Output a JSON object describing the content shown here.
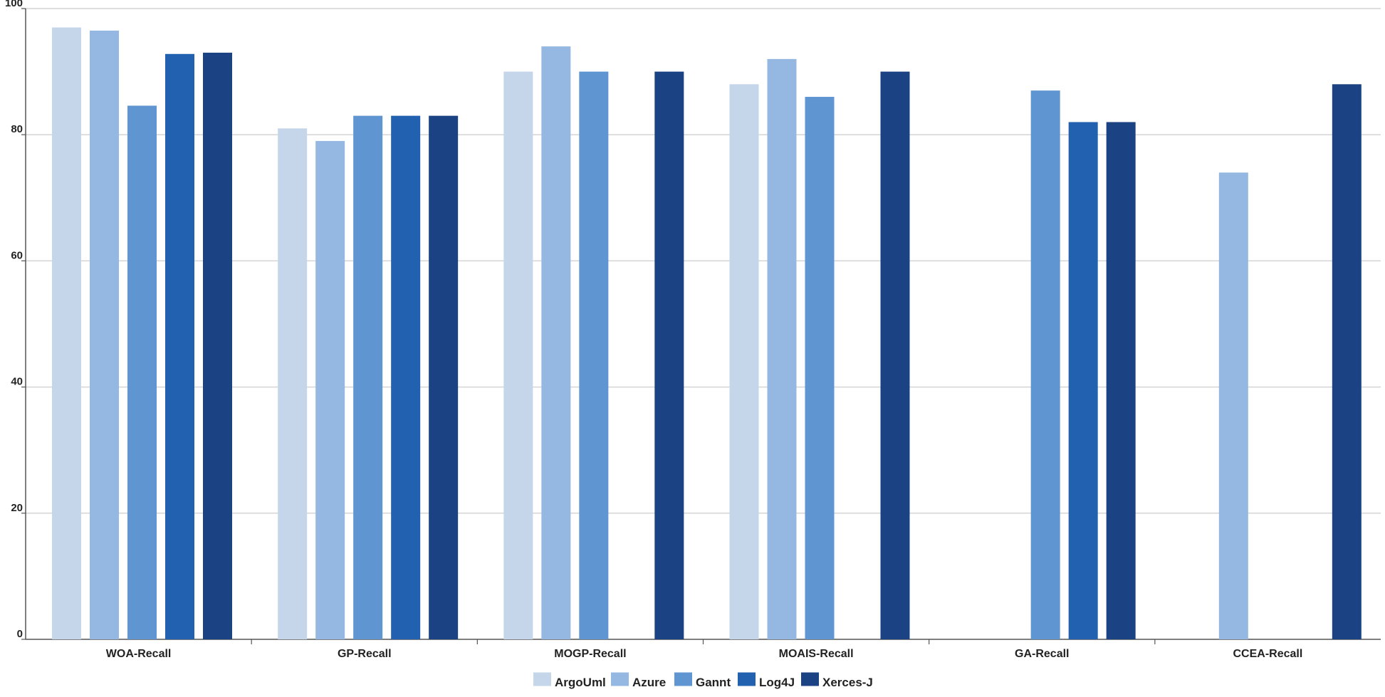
{
  "chart_data": {
    "type": "bar",
    "title": "",
    "xlabel": "",
    "ylabel": "",
    "ylim": [
      0,
      100
    ],
    "yticks": [
      0,
      20,
      40,
      60,
      80,
      100
    ],
    "grid": true,
    "legend_position": "bottom-center",
    "categories": [
      "WOA-Recall",
      "GP-Recall",
      "MOGP-Recall",
      "MOAIS-Recall",
      "GA-Recall",
      "CCEA-Recall"
    ],
    "series": [
      {
        "name": "ArgoUml",
        "color": "#c6d6ea",
        "values": [
          97,
          81,
          90,
          88,
          null,
          null
        ]
      },
      {
        "name": "Azure",
        "color": "#95b8e2",
        "values": [
          96.5,
          79,
          94,
          92,
          null,
          74
        ]
      },
      {
        "name": "Gannt",
        "color": "#5f95d0",
        "values": [
          84.6,
          83,
          90,
          86,
          87,
          null
        ]
      },
      {
        "name": "Log4J",
        "color": "#2260b0",
        "values": [
          92.8,
          83,
          null,
          null,
          82,
          null
        ]
      },
      {
        "name": "Xerces-J",
        "color": "#1b4283",
        "values": [
          93,
          83,
          90,
          90,
          82,
          88
        ]
      }
    ]
  }
}
